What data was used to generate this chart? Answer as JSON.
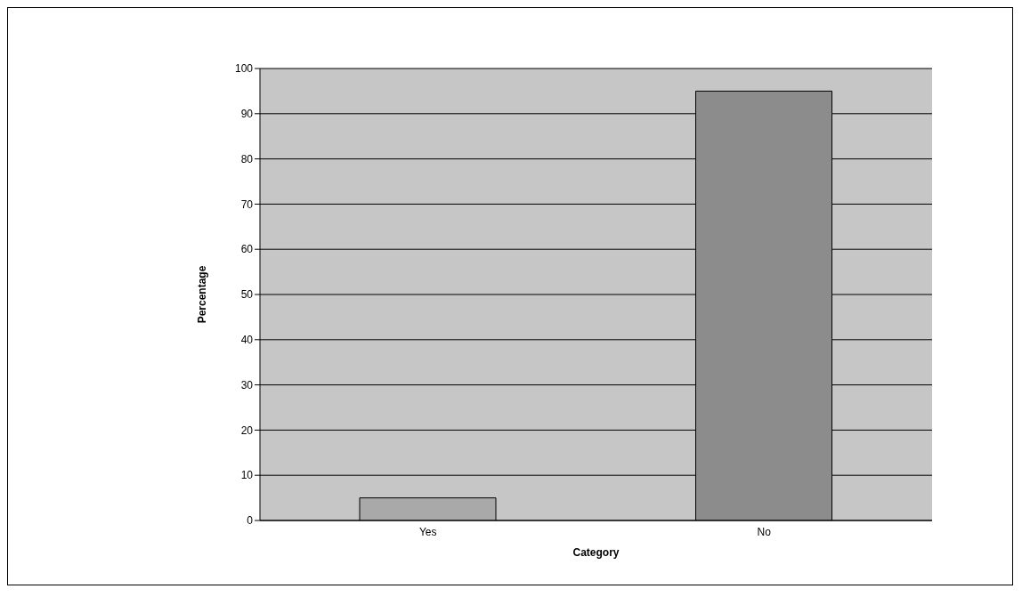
{
  "chart_data": {
    "type": "bar",
    "xlabel": "Category",
    "ylabel": "Percentage",
    "categories": [
      "Yes",
      "No"
    ],
    "values": [
      5,
      95
    ],
    "colors": [
      "#a9a9a9",
      "#8c8c8c"
    ],
    "ylim": [
      0,
      100
    ],
    "yticks": [
      0,
      10,
      20,
      30,
      40,
      50,
      60,
      70,
      80,
      90,
      100
    ],
    "grid": "y"
  }
}
